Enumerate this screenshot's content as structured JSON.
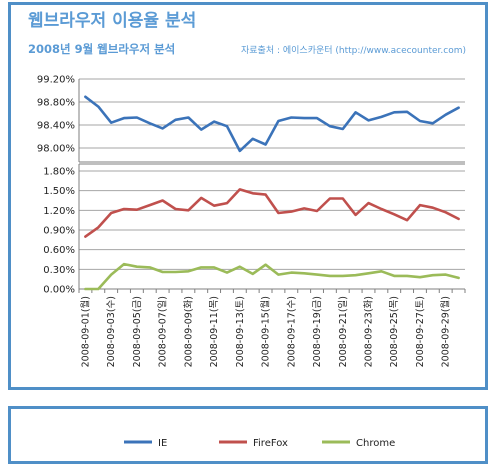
{
  "chart_data": {
    "type": "line",
    "title": "웹브라우저 이용율 분석",
    "subtitle": "2008년 9월 웹브라우저 분석",
    "source": "자료출처 : 에이스카운터 (http://www.acecounter.com)",
    "x": [
      "2008-09-01(월)",
      "2008-09-02",
      "2008-09-03(수)",
      "2008-09-04",
      "2008-09-05(금)",
      "2008-09-06",
      "2008-09-07(일)",
      "2008-09-08",
      "2008-09-09(화)",
      "2008-09-10",
      "2008-09-11(목)",
      "2008-09-12",
      "2008-09-13(토)",
      "2008-09-14",
      "2008-09-15(월)",
      "2008-09-16",
      "2008-09-17(수)",
      "2008-09-18",
      "2008-09-19(금)",
      "2008-09-20",
      "2008-09-21(일)",
      "2008-09-22",
      "2008-09-23(화)",
      "2008-09-24",
      "2008-09-25(목)",
      "2008-09-26",
      "2008-09-27(토)",
      "2008-09-28",
      "2008-09-29(월)",
      "2008-09-30"
    ],
    "x_tick_labels": [
      "2008-09-01(월)",
      "2008-09-03(수)",
      "2008-09-05(금)",
      "2008-09-07(일)",
      "2008-09-09(화)",
      "2008-09-11(목)",
      "2008-09-13(토)",
      "2008-09-15(월)",
      "2008-09-17(수)",
      "2008-09-19(금)",
      "2008-09-21(일)",
      "2008-09-23(화)",
      "2008-09-25(목)",
      "2008-09-27(토)",
      "2008-09-29(월)"
    ],
    "axes": {
      "upper": {
        "ylim": [
          98.0,
          99.2
        ],
        "ticks": [
          "99.20%",
          "98.80%",
          "98.40%",
          "98.00%"
        ]
      },
      "lower": {
        "ylim": [
          0.0,
          1.8
        ],
        "ticks": [
          "1.80%",
          "1.50%",
          "1.20%",
          "0.90%",
          "0.60%",
          "0.30%",
          "0.00%"
        ]
      }
    },
    "grid": true,
    "legend_position": "bottom",
    "series": [
      {
        "name": "IE",
        "color": "#3b73b9",
        "axis": "upper",
        "values": [
          98.89,
          98.72,
          98.44,
          98.52,
          98.53,
          98.43,
          98.34,
          98.49,
          98.53,
          98.32,
          98.46,
          98.38,
          97.95,
          98.16,
          98.06,
          98.47,
          98.53,
          98.52,
          98.52,
          98.38,
          98.33,
          98.62,
          98.48,
          98.54,
          98.62,
          98.63,
          98.47,
          98.43,
          98.58,
          98.7
        ]
      },
      {
        "name": "FireFox",
        "color": "#c0504d",
        "axis": "lower",
        "values": [
          0.8,
          0.94,
          1.16,
          1.22,
          1.21,
          1.28,
          1.35,
          1.22,
          1.2,
          1.39,
          1.27,
          1.31,
          1.52,
          1.46,
          1.44,
          1.16,
          1.18,
          1.23,
          1.19,
          1.38,
          1.38,
          1.13,
          1.31,
          1.22,
          1.14,
          1.05,
          1.28,
          1.24,
          1.17,
          1.07
        ]
      },
      {
        "name": "Chrome",
        "color": "#9bbb59",
        "axis": "lower",
        "values": [
          0.0,
          0.0,
          0.22,
          0.38,
          0.34,
          0.33,
          0.26,
          0.26,
          0.27,
          0.33,
          0.33,
          0.25,
          0.34,
          0.23,
          0.37,
          0.22,
          0.25,
          0.24,
          0.22,
          0.2,
          0.2,
          0.21,
          0.24,
          0.27,
          0.2,
          0.2,
          0.18,
          0.21,
          0.22,
          0.17
        ]
      }
    ]
  }
}
